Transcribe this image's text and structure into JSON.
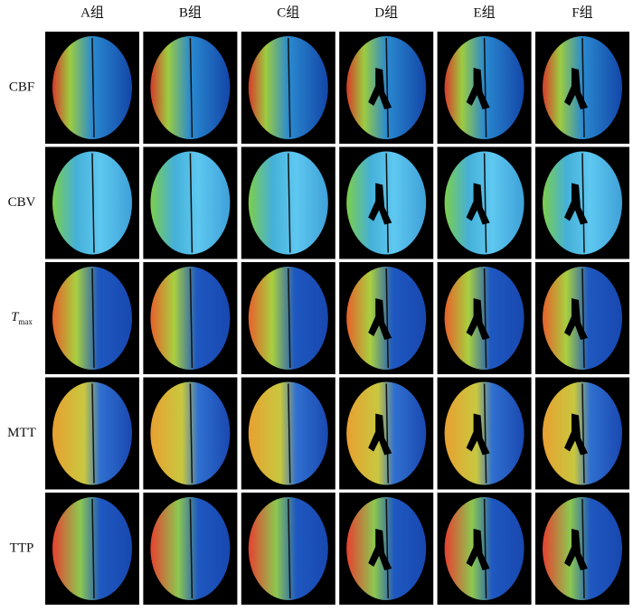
{
  "columns": [
    "A组",
    "B组",
    "C组",
    "D组",
    "E组",
    "F组"
  ],
  "rows": [
    "CBF",
    "CBV",
    {
      "base": "T",
      "sub": "max"
    },
    "MTT",
    "TTP"
  ]
}
